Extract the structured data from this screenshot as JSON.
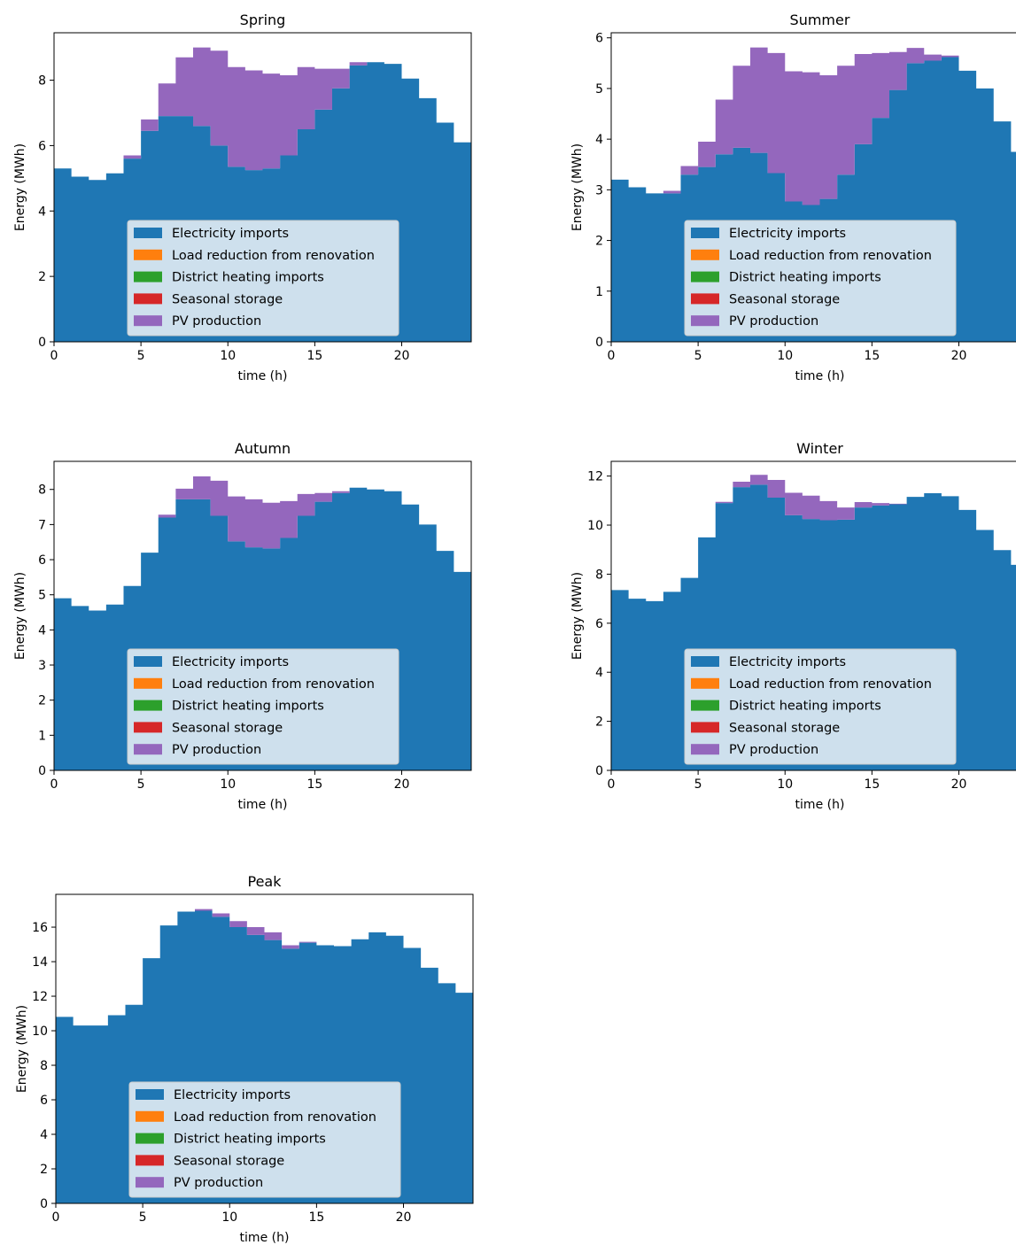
{
  "colors": {
    "electricity_imports": "#1f77b4",
    "load_reduction": "#ff7f0e",
    "district_heating": "#2ca02c",
    "seasonal_storage": "#d62728",
    "pv_production": "#9467bd"
  },
  "chart_data": [
    {
      "type": "area",
      "title": "Spring",
      "xlabel": "time (h)",
      "ylabel": "Energy (MWh)",
      "xlim": [
        0,
        24
      ],
      "ylim": [
        0,
        9.45
      ],
      "xticks": [
        0,
        5,
        10,
        15,
        20
      ],
      "yticks": [
        0,
        2,
        4,
        6,
        8
      ],
      "legend_position": "lower-center",
      "grid": false,
      "x": [
        0,
        1,
        2,
        3,
        4,
        5,
        6,
        7,
        8,
        9,
        10,
        11,
        12,
        13,
        14,
        15,
        16,
        17,
        18,
        19,
        20,
        21,
        22,
        23
      ],
      "series": [
        {
          "name": "Electricity imports",
          "color": "#1f77b4",
          "values": [
            5.3,
            5.05,
            4.95,
            5.15,
            5.6,
            6.45,
            6.9,
            6.9,
            6.6,
            6.0,
            5.35,
            5.25,
            5.3,
            5.7,
            6.5,
            7.1,
            7.75,
            8.45,
            8.55,
            8.5,
            8.05,
            7.45,
            6.7,
            6.1
          ]
        },
        {
          "name": "Load reduction from renovation",
          "color": "#ff7f0e",
          "values": [
            0,
            0,
            0,
            0,
            0,
            0,
            0,
            0,
            0,
            0,
            0,
            0,
            0,
            0,
            0,
            0,
            0,
            0,
            0,
            0,
            0,
            0,
            0,
            0
          ]
        },
        {
          "name": "District heating imports",
          "color": "#2ca02c",
          "values": [
            0,
            0,
            0,
            0,
            0,
            0,
            0,
            0,
            0,
            0,
            0,
            0,
            0,
            0,
            0,
            0,
            0,
            0,
            0,
            0,
            0,
            0,
            0,
            0
          ]
        },
        {
          "name": "Seasonal storage",
          "color": "#d62728",
          "values": [
            0,
            0,
            0,
            0,
            0,
            0,
            0,
            0,
            0,
            0,
            0,
            0,
            0,
            0,
            0,
            0,
            0,
            0,
            0,
            0,
            0,
            0,
            0,
            0
          ]
        },
        {
          "name": "PV production",
          "color": "#9467bd",
          "values": [
            0,
            0,
            0,
            0,
            0.1,
            0.35,
            1.0,
            1.8,
            2.4,
            2.9,
            3.05,
            3.05,
            2.9,
            2.45,
            1.9,
            1.25,
            0.6,
            0.1,
            0.0,
            0,
            0,
            0,
            0,
            0
          ]
        }
      ]
    },
    {
      "type": "area",
      "title": "Summer",
      "xlabel": "time (h)",
      "ylabel": "Energy (MWh)",
      "xlim": [
        0,
        24
      ],
      "ylim": [
        0,
        6.1
      ],
      "xticks": [
        0,
        5,
        10,
        15,
        20
      ],
      "yticks": [
        0,
        1,
        2,
        3,
        4,
        5,
        6
      ],
      "legend_position": "lower-center",
      "grid": false,
      "x": [
        0,
        1,
        2,
        3,
        4,
        5,
        6,
        7,
        8,
        9,
        10,
        11,
        12,
        13,
        14,
        15,
        16,
        17,
        18,
        19,
        20,
        21,
        22,
        23
      ],
      "series": [
        {
          "name": "Electricity imports",
          "color": "#1f77b4",
          "values": [
            3.2,
            3.05,
            2.93,
            2.93,
            3.3,
            3.45,
            3.7,
            3.83,
            3.73,
            3.33,
            2.77,
            2.7,
            2.82,
            3.3,
            3.9,
            4.42,
            4.97,
            5.5,
            5.55,
            5.62,
            5.35,
            5.0,
            4.35,
            3.75
          ]
        },
        {
          "name": "Load reduction from renovation",
          "color": "#ff7f0e",
          "values": [
            0,
            0,
            0,
            0,
            0,
            0,
            0,
            0,
            0,
            0,
            0,
            0,
            0,
            0,
            0,
            0,
            0,
            0,
            0,
            0,
            0,
            0,
            0,
            0
          ]
        },
        {
          "name": "District heating imports",
          "color": "#2ca02c",
          "values": [
            0,
            0,
            0,
            0,
            0,
            0,
            0,
            0,
            0,
            0,
            0,
            0,
            0,
            0,
            0,
            0,
            0,
            0,
            0,
            0,
            0,
            0,
            0,
            0
          ]
        },
        {
          "name": "Seasonal storage",
          "color": "#d62728",
          "values": [
            0,
            0,
            0,
            0,
            0,
            0,
            0,
            0,
            0,
            0,
            0,
            0,
            0,
            0,
            0,
            0,
            0,
            0,
            0,
            0,
            0,
            0,
            0,
            0
          ]
        },
        {
          "name": "PV production",
          "color": "#9467bd",
          "values": [
            0,
            0,
            0,
            0.05,
            0.17,
            0.5,
            1.08,
            1.62,
            2.08,
            2.37,
            2.57,
            2.62,
            2.44,
            2.15,
            1.78,
            1.28,
            0.75,
            0.3,
            0.12,
            0.03,
            0,
            0,
            0,
            0
          ]
        }
      ]
    },
    {
      "type": "area",
      "title": "Autumn",
      "xlabel": "time (h)",
      "ylabel": "Energy (MWh)",
      "xlim": [
        0,
        24
      ],
      "ylim": [
        0,
        8.8
      ],
      "xticks": [
        0,
        5,
        10,
        15,
        20
      ],
      "yticks": [
        0,
        1,
        2,
        3,
        4,
        5,
        6,
        7,
        8
      ],
      "legend_position": "lower-center",
      "grid": false,
      "x": [
        0,
        1,
        2,
        3,
        4,
        5,
        6,
        7,
        8,
        9,
        10,
        11,
        12,
        13,
        14,
        15,
        16,
        17,
        18,
        19,
        20,
        21,
        22,
        23
      ],
      "series": [
        {
          "name": "Electricity imports",
          "color": "#1f77b4",
          "values": [
            4.9,
            4.68,
            4.55,
            4.72,
            5.25,
            6.2,
            7.2,
            7.72,
            7.72,
            7.25,
            6.52,
            6.35,
            6.32,
            6.62,
            7.25,
            7.65,
            7.9,
            8.05,
            8.0,
            7.95,
            7.57,
            7.0,
            6.25,
            5.65
          ]
        },
        {
          "name": "Load reduction from renovation",
          "color": "#ff7f0e",
          "values": [
            0,
            0,
            0,
            0,
            0,
            0,
            0,
            0,
            0,
            0,
            0,
            0,
            0,
            0,
            0,
            0,
            0,
            0,
            0,
            0,
            0,
            0,
            0,
            0
          ]
        },
        {
          "name": "District heating imports",
          "color": "#2ca02c",
          "values": [
            0,
            0,
            0,
            0,
            0,
            0,
            0,
            0,
            0,
            0,
            0,
            0,
            0,
            0,
            0,
            0,
            0,
            0,
            0,
            0,
            0,
            0,
            0,
            0
          ]
        },
        {
          "name": "Seasonal storage",
          "color": "#d62728",
          "values": [
            0,
            0,
            0,
            0,
            0,
            0,
            0,
            0,
            0,
            0,
            0,
            0,
            0,
            0,
            0,
            0,
            0,
            0,
            0,
            0,
            0,
            0,
            0,
            0
          ]
        },
        {
          "name": "PV production",
          "color": "#9467bd",
          "values": [
            0,
            0,
            0,
            0,
            0,
            0,
            0.08,
            0.3,
            0.65,
            1.0,
            1.28,
            1.37,
            1.3,
            1.05,
            0.62,
            0.25,
            0.05,
            0,
            0,
            0,
            0,
            0,
            0,
            0
          ]
        }
      ]
    },
    {
      "type": "area",
      "title": "Winter",
      "xlabel": "time (h)",
      "ylabel": "Energy (MWh)",
      "xlim": [
        0,
        24
      ],
      "ylim": [
        0,
        12.6
      ],
      "xticks": [
        0,
        5,
        10,
        15,
        20
      ],
      "yticks": [
        0,
        2,
        4,
        6,
        8,
        10,
        12
      ],
      "legend_position": "lower-center",
      "grid": false,
      "x": [
        0,
        1,
        2,
        3,
        4,
        5,
        6,
        7,
        8,
        9,
        10,
        11,
        12,
        13,
        14,
        15,
        16,
        17,
        18,
        19,
        20,
        21,
        22,
        23
      ],
      "series": [
        {
          "name": "Electricity imports",
          "color": "#1f77b4",
          "values": [
            7.35,
            7.0,
            6.9,
            7.28,
            7.85,
            9.5,
            10.9,
            11.55,
            11.65,
            11.12,
            10.4,
            10.25,
            10.2,
            10.22,
            10.72,
            10.8,
            10.85,
            11.15,
            11.3,
            11.18,
            10.62,
            9.8,
            8.98,
            8.38
          ]
        },
        {
          "name": "Load reduction from renovation",
          "color": "#ff7f0e",
          "values": [
            0,
            0,
            0,
            0,
            0,
            0,
            0,
            0,
            0,
            0,
            0,
            0,
            0,
            0,
            0,
            0,
            0,
            0,
            0,
            0,
            0,
            0,
            0,
            0
          ]
        },
        {
          "name": "District heating imports",
          "color": "#2ca02c",
          "values": [
            0,
            0,
            0,
            0,
            0,
            0,
            0,
            0,
            0,
            0,
            0,
            0,
            0,
            0,
            0,
            0,
            0,
            0,
            0,
            0,
            0,
            0,
            0,
            0
          ]
        },
        {
          "name": "Seasonal storage",
          "color": "#d62728",
          "values": [
            0,
            0,
            0,
            0,
            0,
            0,
            0,
            0,
            0,
            0,
            0,
            0,
            0,
            0,
            0,
            0,
            0,
            0,
            0,
            0,
            0,
            0,
            0,
            0
          ]
        },
        {
          "name": "PV production",
          "color": "#9467bd",
          "values": [
            0,
            0,
            0,
            0,
            0,
            0,
            0.05,
            0.22,
            0.4,
            0.72,
            0.92,
            0.95,
            0.78,
            0.5,
            0.22,
            0.1,
            0.02,
            0,
            0,
            0,
            0,
            0,
            0,
            0
          ]
        }
      ]
    },
    {
      "type": "area",
      "title": "Peak",
      "xlabel": "time (h)",
      "ylabel": "Energy (MWh)",
      "xlim": [
        0,
        24
      ],
      "ylim": [
        0,
        17.9
      ],
      "xticks": [
        0,
        5,
        10,
        15,
        20
      ],
      "yticks": [
        0,
        2,
        4,
        6,
        8,
        10,
        12,
        14,
        16
      ],
      "legend_position": "lower-center",
      "grid": false,
      "x": [
        0,
        1,
        2,
        3,
        4,
        5,
        6,
        7,
        8,
        9,
        10,
        11,
        12,
        13,
        14,
        15,
        16,
        17,
        18,
        19,
        20,
        21,
        22,
        23
      ],
      "series": [
        {
          "name": "Electricity imports",
          "color": "#1f77b4",
          "values": [
            10.8,
            10.3,
            10.3,
            10.9,
            11.5,
            14.2,
            16.1,
            16.9,
            16.95,
            16.6,
            16.0,
            15.55,
            15.25,
            14.75,
            15.1,
            14.95,
            14.9,
            15.3,
            15.7,
            15.5,
            14.8,
            13.65,
            12.75,
            12.2
          ]
        },
        {
          "name": "Load reduction from renovation",
          "color": "#ff7f0e",
          "values": [
            0,
            0,
            0,
            0,
            0,
            0,
            0,
            0,
            0,
            0,
            0,
            0,
            0,
            0,
            0,
            0,
            0,
            0,
            0,
            0,
            0,
            0,
            0,
            0
          ]
        },
        {
          "name": "District heating imports",
          "color": "#2ca02c",
          "values": [
            0,
            0,
            0,
            0,
            0,
            0,
            0,
            0,
            0,
            0,
            0,
            0,
            0,
            0,
            0,
            0,
            0,
            0,
            0,
            0,
            0,
            0,
            0,
            0
          ]
        },
        {
          "name": "Seasonal storage",
          "color": "#d62728",
          "values": [
            0,
            0,
            0,
            0,
            0,
            0,
            0,
            0,
            0,
            0,
            0,
            0,
            0,
            0,
            0,
            0,
            0,
            0,
            0,
            0,
            0,
            0,
            0,
            0
          ]
        },
        {
          "name": "PV production",
          "color": "#9467bd",
          "values": [
            0,
            0,
            0,
            0,
            0,
            0,
            0,
            0,
            0.1,
            0.2,
            0.35,
            0.45,
            0.45,
            0.2,
            0.05,
            0,
            0,
            0,
            0,
            0,
            0,
            0,
            0,
            0
          ]
        }
      ]
    }
  ]
}
